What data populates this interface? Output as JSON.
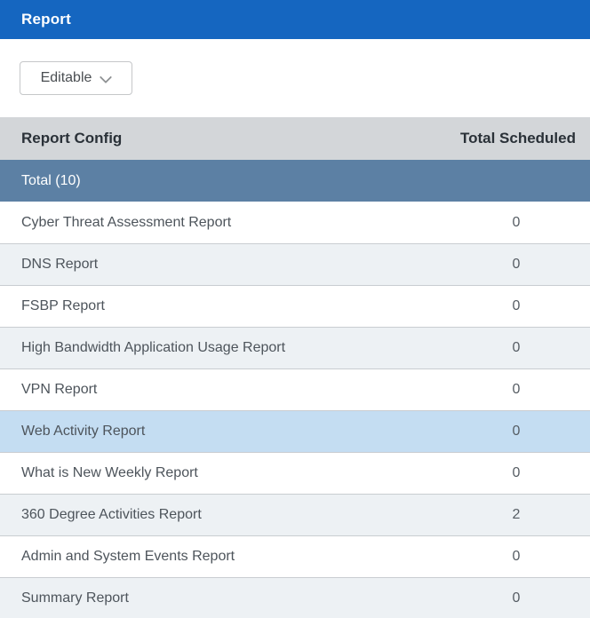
{
  "page": {
    "title": "Report"
  },
  "toolbar": {
    "editable_button_label": "Editable",
    "editable_button_icon": "chevron-down-icon"
  },
  "table": {
    "columns": [
      {
        "label": "Report Config"
      },
      {
        "label": "Total Scheduled"
      }
    ],
    "total_row": {
      "label": "Total (10)"
    },
    "rows": [
      {
        "name": "Cyber Threat Assessment Report",
        "total_scheduled": "0",
        "selected": false
      },
      {
        "name": "DNS Report",
        "total_scheduled": "0",
        "selected": false
      },
      {
        "name": "FSBP Report",
        "total_scheduled": "0",
        "selected": false
      },
      {
        "name": "High Bandwidth Application Usage Report",
        "total_scheduled": "0",
        "selected": false
      },
      {
        "name": "VPN Report",
        "total_scheduled": "0",
        "selected": false
      },
      {
        "name": "Web Activity Report",
        "total_scheduled": "0",
        "selected": true
      },
      {
        "name": "What is New Weekly Report",
        "total_scheduled": "0",
        "selected": false
      },
      {
        "name": "360 Degree Activities Report",
        "total_scheduled": "2",
        "selected": false
      },
      {
        "name": "Admin and System Events Report",
        "total_scheduled": "0",
        "selected": false
      },
      {
        "name": "Summary Report",
        "total_scheduled": "0",
        "selected": false
      }
    ]
  },
  "colors": {
    "titlebar_bg": "#1566c0",
    "titlebar_text": "#ffffff",
    "table_header_bg": "#d3d6d9",
    "total_row_bg": "#5c80a4",
    "row_stripe_bg": "#edf1f4",
    "selected_row_bg": "#c4ddf2",
    "row_border": "#c9cdd1",
    "row_text": "#4d545b"
  }
}
